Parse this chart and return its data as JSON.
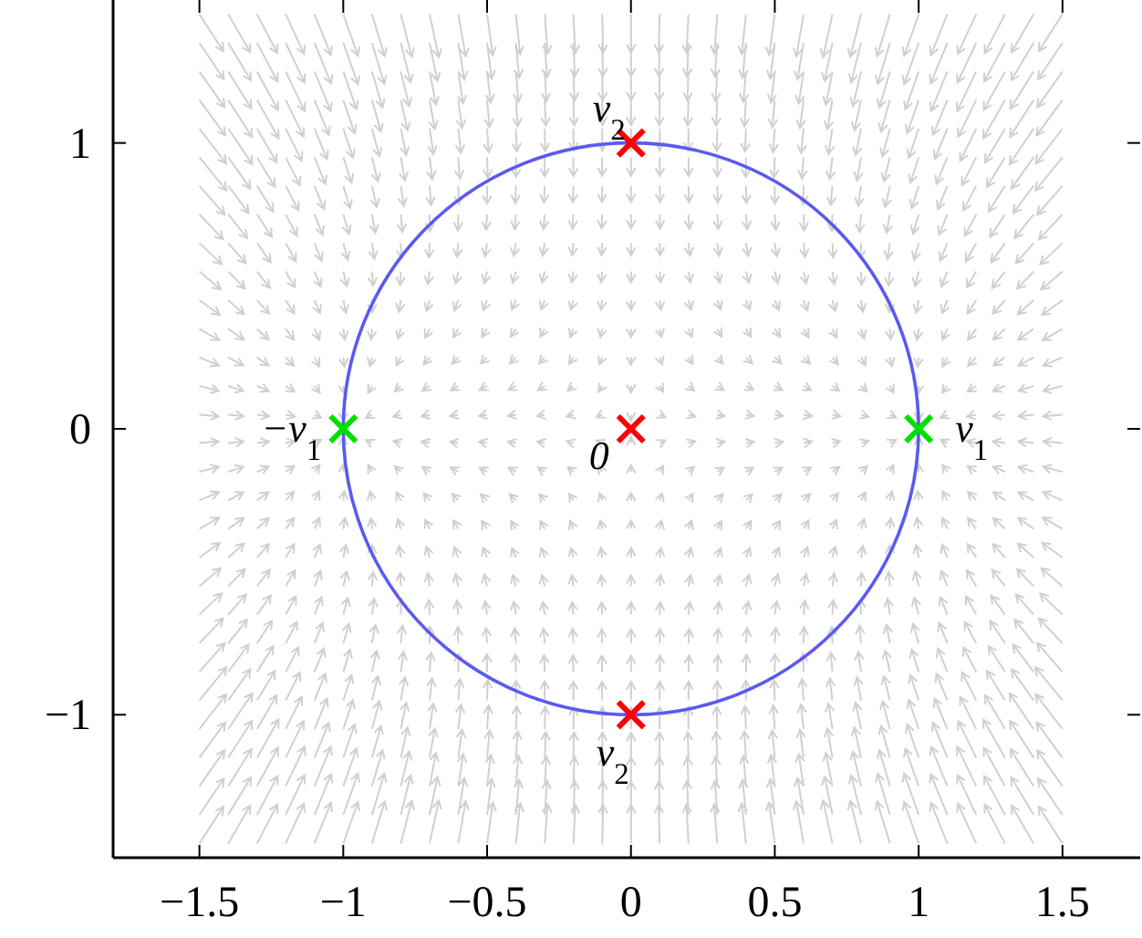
{
  "chart_data": {
    "type": "scatter",
    "xlim": [
      -1.8,
      1.77
    ],
    "ylim": [
      -1.5,
      1.5
    ],
    "xticks": [
      {
        "value": -1.5,
        "label": "−1.5"
      },
      {
        "value": -1,
        "label": "−1"
      },
      {
        "value": -0.5,
        "label": "−0.5"
      },
      0,
      0.5,
      1,
      1.5
    ],
    "yticks": [
      {
        "value": -1,
        "label": "−1"
      },
      0,
      1
    ],
    "series": [
      {
        "color": "#ff0000",
        "marker": "cross",
        "x": [
          0,
          0,
          0
        ],
        "values": [
          1,
          0,
          -1
        ]
      },
      {
        "color": "#00e000",
        "marker": "cross",
        "x": [
          -1,
          1
        ],
        "values": [
          0,
          0
        ]
      }
    ],
    "annotations": [
      {
        "text": "v$_{2}$",
        "x": 0,
        "y": 1
      },
      {
        "text": "0",
        "x": 0,
        "y": 0
      },
      {
        "text": "v$_{2}$",
        "x": 0,
        "y": -1
      },
      {
        "text": "−v$_{1}$",
        "x": -1,
        "y": 0
      },
      {
        "text": "v$_{1}$",
        "x": 1,
        "y": 0
      }
    ]
  }
}
